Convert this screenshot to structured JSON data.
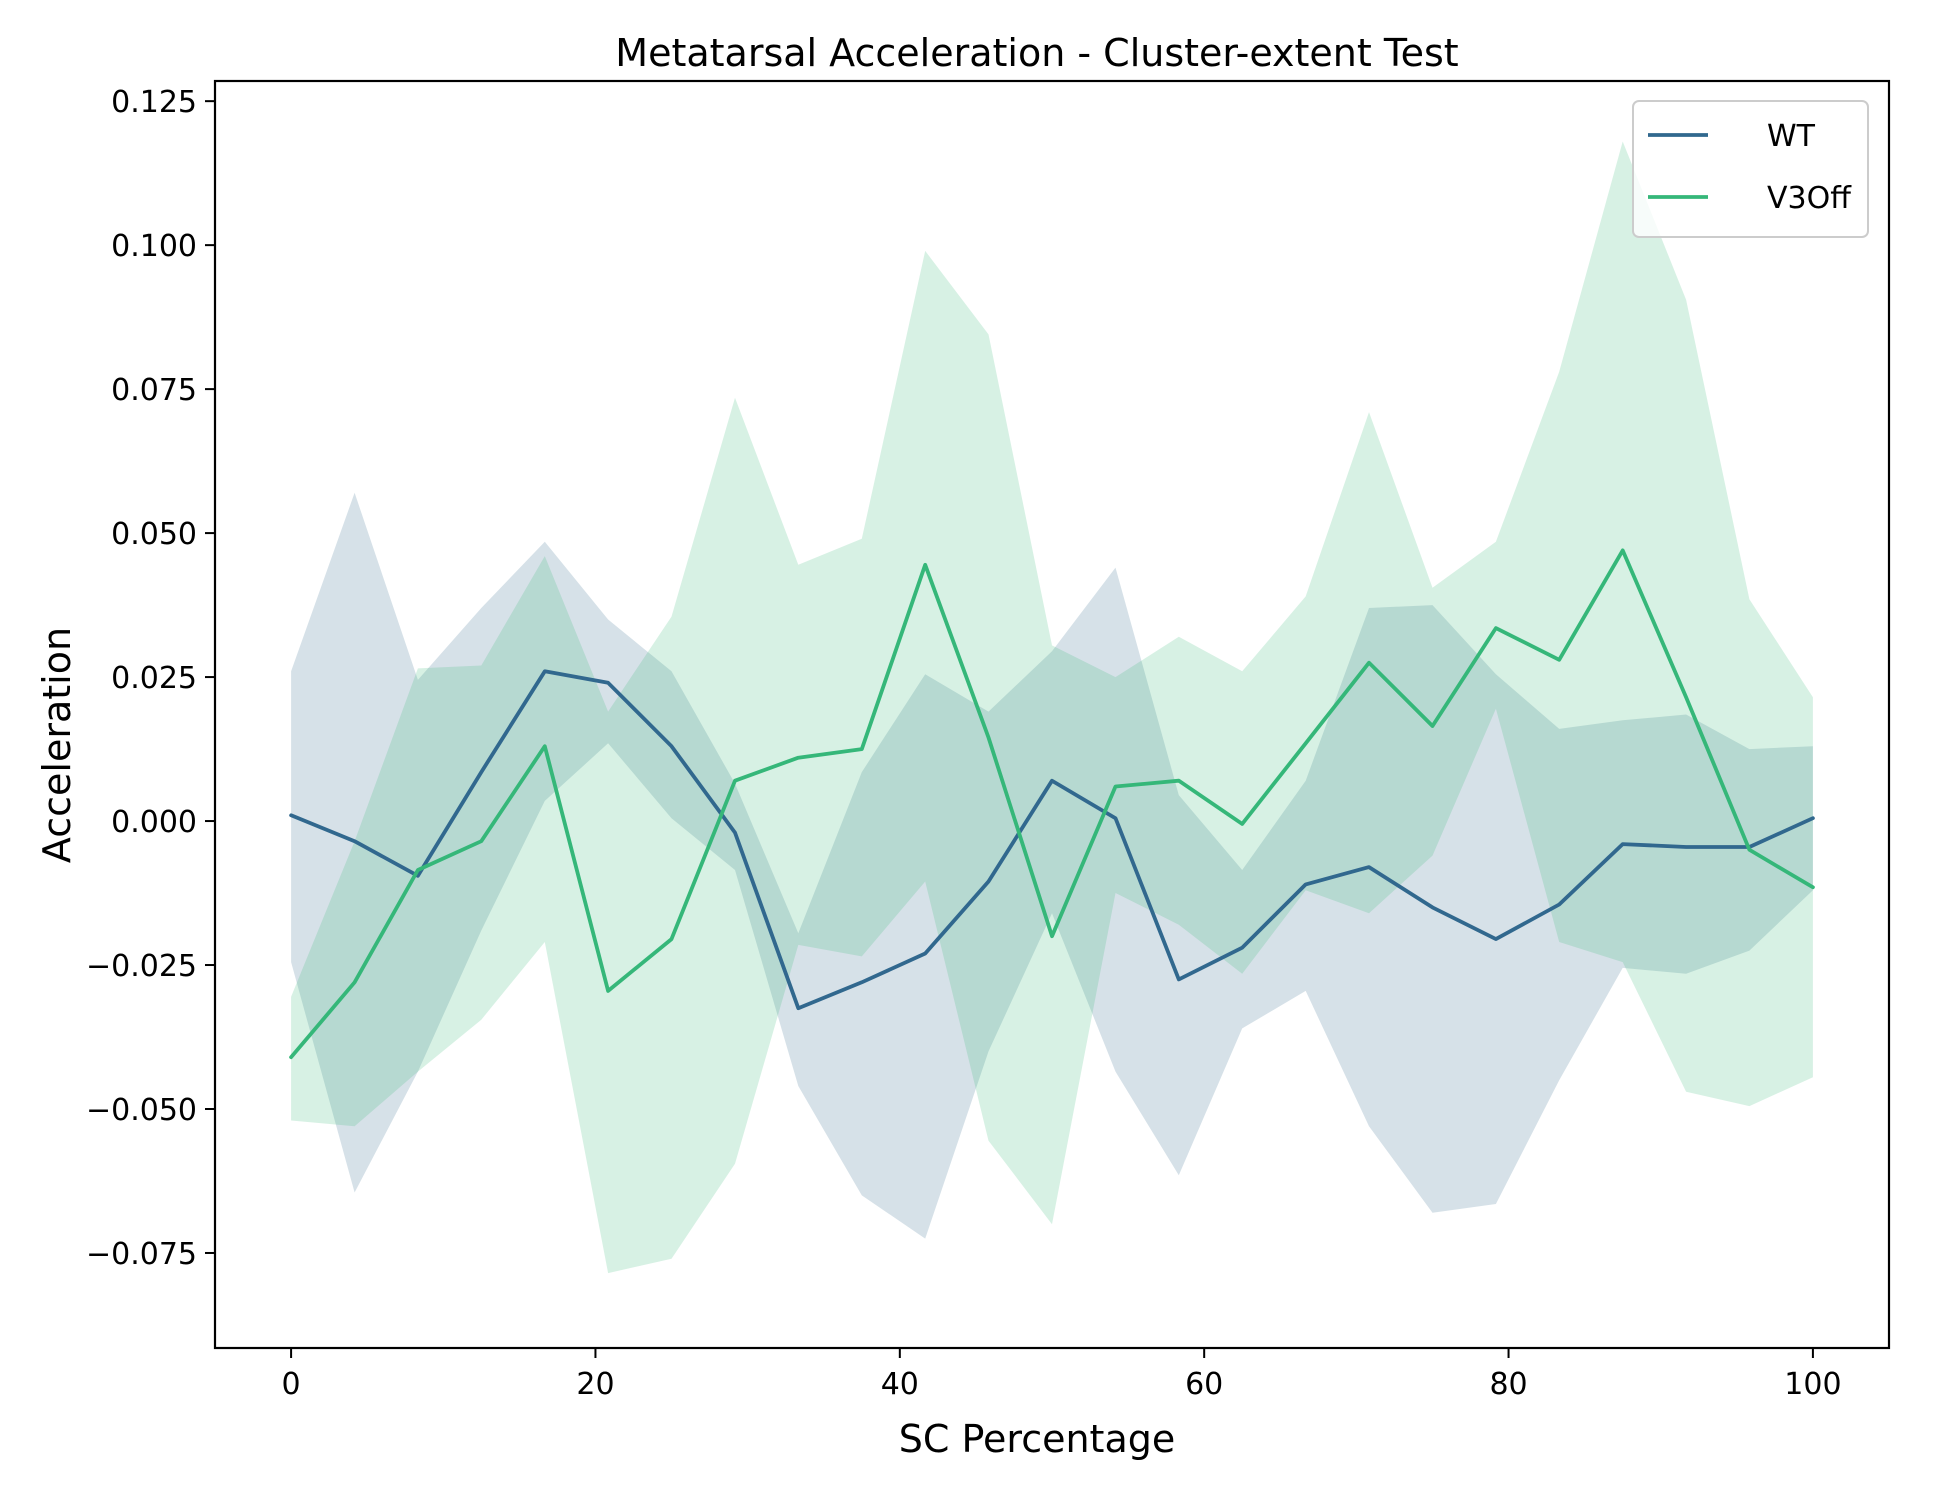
{
  "chart_data": {
    "type": "line",
    "title": "Metatarsal Acceleration - Cluster-extent Test",
    "xlabel": "SC Percentage",
    "ylabel": "Acceleration",
    "xlim": [
      -5,
      105
    ],
    "ylim": [
      -0.0915,
      0.1285
    ],
    "xticks": [
      0,
      20,
      40,
      60,
      80,
      100
    ],
    "xtick_labels": [
      "0",
      "20",
      "40",
      "60",
      "80",
      "100"
    ],
    "yticks": [
      -0.075,
      -0.05,
      -0.025,
      0.0,
      0.025,
      0.05,
      0.075,
      0.1,
      0.125
    ],
    "ytick_labels": [
      "−0.075",
      "−0.050",
      "−0.025",
      "0.000",
      "0.025",
      "0.050",
      "0.075",
      "0.100",
      "0.125"
    ],
    "grid": false,
    "legend_position": "top-right",
    "x": [
      0,
      4.17,
      8.33,
      12.5,
      16.67,
      20.83,
      25,
      29.17,
      33.33,
      37.5,
      41.67,
      45.83,
      50,
      54.17,
      58.33,
      62.5,
      66.67,
      70.83,
      75,
      79.17,
      83.33,
      87.5,
      91.67,
      95.83,
      100
    ],
    "series": [
      {
        "name": "WT",
        "color": "#31688e",
        "values": [
          0.001,
          -0.0035,
          -0.0095,
          0.0085,
          0.026,
          0.024,
          0.013,
          -0.002,
          -0.0325,
          -0.028,
          -0.023,
          -0.0105,
          0.007,
          0.0005,
          -0.0275,
          -0.022,
          -0.011,
          -0.008,
          -0.015,
          -0.0205,
          -0.0145,
          -0.004,
          -0.0045,
          -0.0045,
          0.0005
        ],
        "upper": [
          0.026,
          0.057,
          0.0245,
          0.037,
          0.0485,
          0.035,
          0.026,
          0.0065,
          -0.0195,
          0.0085,
          0.0255,
          0.019,
          0.0295,
          0.044,
          0.0045,
          -0.0085,
          0.007,
          0.037,
          0.0375,
          0.0255,
          0.016,
          0.0175,
          0.0185,
          0.0125,
          0.013
        ],
        "lower": [
          -0.0245,
          -0.0645,
          -0.0435,
          -0.019,
          0.0035,
          0.0135,
          0.0005,
          -0.0085,
          -0.046,
          -0.065,
          -0.0725,
          -0.04,
          -0.016,
          -0.0435,
          -0.0615,
          -0.036,
          -0.0295,
          -0.053,
          -0.068,
          -0.0665,
          -0.045,
          -0.0255,
          -0.0265,
          -0.0225,
          -0.012
        ]
      },
      {
        "name": "V3Off",
        "color": "#35b779",
        "values": [
          -0.041,
          -0.028,
          -0.0085,
          -0.0035,
          0.013,
          -0.0295,
          -0.0205,
          0.007,
          0.011,
          0.0125,
          0.0445,
          0.0145,
          -0.02,
          0.006,
          0.007,
          -0.0005,
          0.0135,
          0.0275,
          0.0165,
          0.0335,
          0.028,
          0.047,
          0.0215,
          -0.005,
          -0.0115
        ],
        "upper": [
          -0.0305,
          -0.0035,
          0.0265,
          0.027,
          0.046,
          0.019,
          0.0355,
          0.0735,
          0.0445,
          0.049,
          0.099,
          0.0845,
          0.0305,
          0.025,
          0.032,
          0.026,
          0.039,
          0.071,
          0.0405,
          0.0485,
          0.078,
          0.118,
          0.0905,
          0.0385,
          0.0215
        ],
        "lower": [
          -0.052,
          -0.053,
          -0.0435,
          -0.0345,
          -0.021,
          -0.0785,
          -0.076,
          -0.0595,
          -0.0215,
          -0.0235,
          -0.0105,
          -0.0555,
          -0.07,
          -0.0125,
          -0.018,
          -0.0265,
          -0.012,
          -0.016,
          -0.006,
          0.0195,
          -0.021,
          -0.0245,
          -0.047,
          -0.0495,
          -0.0445
        ]
      }
    ]
  }
}
